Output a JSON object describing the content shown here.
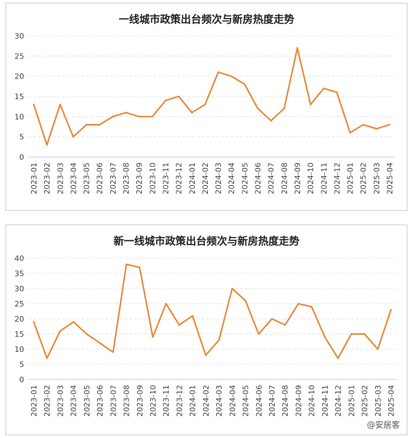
{
  "watermark": "@安居客",
  "chart_data": [
    {
      "type": "line",
      "title": "一线城市政策出台频次与新房热度走势",
      "categories": [
        "2023-01",
        "2023-02",
        "2023-03",
        "2023-04",
        "2023-05",
        "2023-06",
        "2023-07",
        "2023-08",
        "2023-09",
        "2023-10",
        "2023-11",
        "2023-12",
        "2024-01",
        "2024-02",
        "2024-03",
        "2024-04",
        "2024-05",
        "2024-06",
        "2024-07",
        "2024-08",
        "2024-09",
        "2024-10",
        "2024-11",
        "2024-12",
        "2025-01",
        "2025-02",
        "2025-03",
        "2025-04"
      ],
      "values": [
        13,
        3,
        13,
        5,
        8,
        8,
        10,
        11,
        10,
        10,
        14,
        15,
        11,
        13,
        21,
        20,
        18,
        12,
        9,
        12,
        27,
        13,
        17,
        16,
        6,
        8,
        7,
        8
      ],
      "ylim": [
        0,
        30
      ],
      "yticks": [
        0,
        5,
        10,
        15,
        20,
        25,
        30
      ],
      "grid": true,
      "color": "#e8893a"
    },
    {
      "type": "line",
      "title": "新一线城市政策出台频次与新房热度走势",
      "categories": [
        "2023-01",
        "2023-02",
        "2023-03",
        "2023-04",
        "2023-05",
        "2023-06",
        "2023-07",
        "2023-08",
        "2023-09",
        "2023-10",
        "2023-11",
        "2023-12",
        "2024-01",
        "2024-02",
        "2024-03",
        "2024-04",
        "2024-05",
        "2024-06",
        "2024-07",
        "2024-08",
        "2024-09",
        "2024-10",
        "2024-11",
        "2024-12",
        "2025-01",
        "2025-02",
        "2025-03",
        "2025-04"
      ],
      "values": [
        19,
        7,
        16,
        19,
        15,
        12,
        9,
        38,
        37,
        14,
        25,
        18,
        21,
        8,
        13,
        30,
        26,
        15,
        20,
        18,
        25,
        24,
        14,
        7,
        15,
        15,
        10,
        23
      ],
      "ylim": [
        0,
        40
      ],
      "yticks": [
        0,
        5,
        10,
        15,
        20,
        25,
        30,
        35,
        40
      ],
      "grid": true,
      "color": "#e8893a"
    }
  ]
}
